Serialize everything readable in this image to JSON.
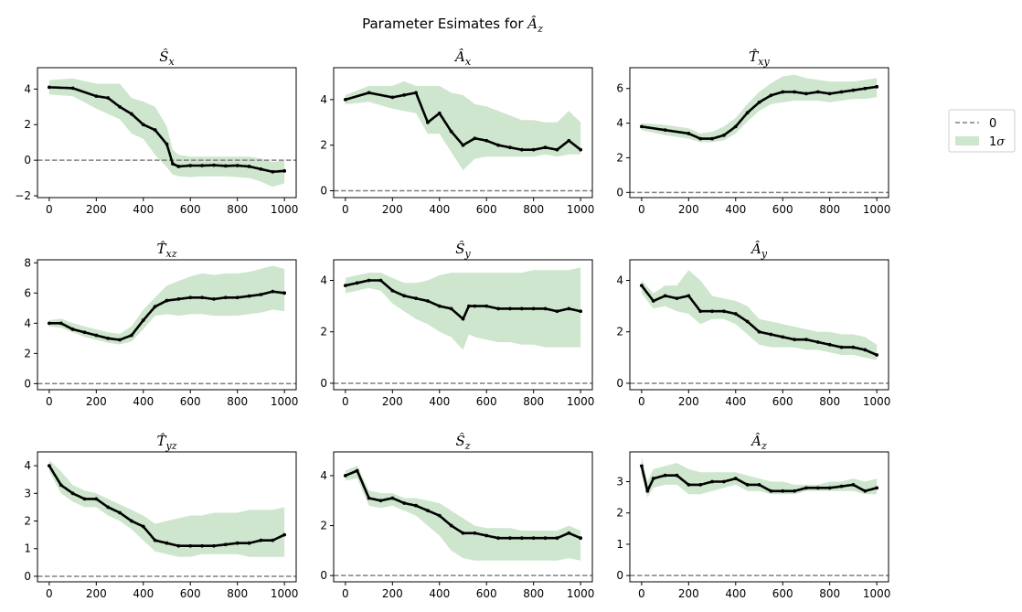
{
  "figure": {
    "suptitle_prefix": "Parameter Esimates for ",
    "suptitle_symbol": "Â",
    "suptitle_sub": "z"
  },
  "legend": {
    "zero_label": "0",
    "band_label_prefix": "1",
    "band_label_symbol": "σ"
  },
  "colors": {
    "estimate": "#000000",
    "band": "#cde6cd",
    "zero_line": "#808080"
  },
  "chart_data": [
    {
      "type": "line",
      "title_symbol": "Ŝ",
      "title_sub": "x",
      "xlim": [
        -50,
        1050
      ],
      "ylim": [
        -2.1,
        5.2
      ],
      "xticks": [
        0,
        200,
        400,
        600,
        800,
        1000
      ],
      "yticks": [
        -2,
        0,
        2,
        4
      ],
      "x": [
        0,
        100,
        200,
        250,
        300,
        350,
        400,
        450,
        500,
        525,
        550,
        600,
        650,
        700,
        750,
        800,
        850,
        900,
        950,
        1000
      ],
      "values": [
        4.1,
        4.05,
        3.6,
        3.5,
        3.0,
        2.6,
        2.0,
        1.7,
        0.9,
        -0.2,
        -0.35,
        -0.3,
        -0.3,
        -0.28,
        -0.32,
        -0.3,
        -0.35,
        -0.5,
        -0.65,
        -0.6
      ],
      "lower": [
        3.7,
        3.6,
        2.9,
        2.6,
        2.3,
        1.5,
        1.2,
        0.3,
        -0.4,
        -0.8,
        -0.9,
        -0.95,
        -0.9,
        -0.9,
        -0.9,
        -0.95,
        -1.0,
        -1.2,
        -1.5,
        -1.3
      ],
      "upper": [
        4.5,
        4.6,
        4.3,
        4.3,
        4.3,
        3.5,
        3.3,
        3.0,
        1.9,
        0.6,
        0.3,
        0.2,
        0.2,
        0.2,
        0.2,
        0.2,
        0.2,
        0.1,
        -0.1,
        0.0
      ]
    },
    {
      "type": "line",
      "title_symbol": "Â",
      "title_sub": "x",
      "xlim": [
        -50,
        1050
      ],
      "ylim": [
        -0.3,
        5.4
      ],
      "xticks": [
        0,
        200,
        400,
        600,
        800,
        1000
      ],
      "yticks": [
        0,
        2,
        4
      ],
      "x": [
        0,
        100,
        200,
        250,
        300,
        350,
        400,
        450,
        500,
        550,
        600,
        650,
        700,
        750,
        800,
        850,
        900,
        950,
        1000
      ],
      "values": [
        4.0,
        4.3,
        4.1,
        4.2,
        4.3,
        3.0,
        3.4,
        2.6,
        2.0,
        2.3,
        2.2,
        2.0,
        1.9,
        1.8,
        1.8,
        1.9,
        1.8,
        2.2,
        1.8
      ],
      "lower": [
        3.8,
        3.9,
        3.6,
        3.5,
        3.4,
        2.5,
        2.5,
        1.7,
        0.9,
        1.4,
        1.5,
        1.5,
        1.5,
        1.5,
        1.5,
        1.6,
        1.5,
        1.6,
        1.6
      ],
      "upper": [
        4.2,
        4.6,
        4.6,
        4.8,
        4.6,
        4.6,
        4.6,
        4.3,
        4.2,
        3.8,
        3.7,
        3.5,
        3.3,
        3.1,
        3.1,
        3.0,
        3.0,
        3.5,
        3.0
      ]
    },
    {
      "type": "line",
      "title_symbol": "T̂",
      "title_sub": "xy",
      "xlim": [
        -50,
        1050
      ],
      "ylim": [
        -0.3,
        7.2
      ],
      "xticks": [
        0,
        200,
        400,
        600,
        800,
        1000
      ],
      "yticks": [
        0,
        2,
        4,
        6
      ],
      "x": [
        0,
        100,
        200,
        250,
        300,
        350,
        400,
        450,
        500,
        550,
        600,
        650,
        700,
        750,
        800,
        850,
        900,
        950,
        1000
      ],
      "values": [
        3.8,
        3.6,
        3.4,
        3.1,
        3.1,
        3.3,
        3.8,
        4.6,
        5.2,
        5.6,
        5.8,
        5.8,
        5.7,
        5.8,
        5.7,
        5.8,
        5.9,
        6.0,
        6.1
      ],
      "lower": [
        3.6,
        3.3,
        3.1,
        2.9,
        2.9,
        3.0,
        3.4,
        4.1,
        4.7,
        5.1,
        5.2,
        5.3,
        5.3,
        5.3,
        5.2,
        5.3,
        5.4,
        5.4,
        5.5
      ],
      "upper": [
        4.0,
        3.9,
        3.7,
        3.4,
        3.5,
        3.8,
        4.3,
        5.1,
        5.8,
        6.3,
        6.7,
        6.8,
        6.6,
        6.5,
        6.4,
        6.4,
        6.4,
        6.5,
        6.6
      ]
    },
    {
      "type": "line",
      "title_symbol": "T̂",
      "title_sub": "xz",
      "xlim": [
        -50,
        1050
      ],
      "ylim": [
        -0.4,
        8.2
      ],
      "xticks": [
        0,
        200,
        400,
        600,
        800,
        1000
      ],
      "yticks": [
        0,
        2,
        4,
        6,
        8
      ],
      "x": [
        0,
        50,
        100,
        150,
        200,
        250,
        300,
        350,
        400,
        450,
        500,
        550,
        600,
        650,
        700,
        750,
        800,
        850,
        900,
        950,
        1000
      ],
      "values": [
        4.0,
        4.0,
        3.6,
        3.4,
        3.2,
        3.0,
        2.9,
        3.2,
        4.2,
        5.1,
        5.5,
        5.6,
        5.7,
        5.7,
        5.6,
        5.7,
        5.7,
        5.8,
        5.9,
        6.1,
        6.0
      ],
      "lower": [
        3.8,
        3.7,
        3.4,
        3.1,
        2.9,
        2.7,
        2.6,
        2.8,
        3.6,
        4.5,
        4.6,
        4.5,
        4.6,
        4.6,
        4.5,
        4.5,
        4.5,
        4.6,
        4.7,
        4.9,
        4.8
      ],
      "upper": [
        4.2,
        4.3,
        4.0,
        3.8,
        3.6,
        3.4,
        3.3,
        3.8,
        4.9,
        5.7,
        6.5,
        6.8,
        7.1,
        7.3,
        7.2,
        7.3,
        7.3,
        7.4,
        7.6,
        7.8,
        7.6
      ]
    },
    {
      "type": "line",
      "title_symbol": "Ŝ",
      "title_sub": "y",
      "xlim": [
        -50,
        1050
      ],
      "ylim": [
        -0.25,
        4.8
      ],
      "xticks": [
        0,
        200,
        400,
        600,
        800,
        1000
      ],
      "yticks": [
        0,
        2,
        4
      ],
      "x": [
        0,
        50,
        100,
        150,
        200,
        250,
        300,
        350,
        400,
        450,
        500,
        525,
        550,
        600,
        650,
        700,
        750,
        800,
        850,
        900,
        950,
        1000
      ],
      "values": [
        3.8,
        3.9,
        4.0,
        4.0,
        3.6,
        3.4,
        3.3,
        3.2,
        3.0,
        2.9,
        2.5,
        3.0,
        3.0,
        3.0,
        2.9,
        2.9,
        2.9,
        2.9,
        2.9,
        2.8,
        2.9,
        2.8
      ],
      "lower": [
        3.5,
        3.6,
        3.7,
        3.6,
        3.1,
        2.8,
        2.5,
        2.3,
        2.0,
        1.8,
        1.3,
        1.9,
        1.8,
        1.7,
        1.6,
        1.6,
        1.5,
        1.5,
        1.4,
        1.4,
        1.4,
        1.4
      ],
      "upper": [
        4.1,
        4.2,
        4.3,
        4.3,
        4.1,
        3.9,
        3.9,
        4.0,
        4.2,
        4.3,
        4.3,
        4.3,
        4.3,
        4.3,
        4.3,
        4.3,
        4.3,
        4.4,
        4.4,
        4.4,
        4.4,
        4.5
      ]
    },
    {
      "type": "line",
      "title_symbol": "Â",
      "title_sub": "y",
      "xlim": [
        -50,
        1050
      ],
      "ylim": [
        -0.25,
        4.8
      ],
      "xticks": [
        0,
        200,
        400,
        600,
        800,
        1000
      ],
      "yticks": [
        0,
        2,
        4
      ],
      "x": [
        0,
        50,
        100,
        150,
        200,
        250,
        300,
        350,
        400,
        450,
        500,
        550,
        600,
        650,
        700,
        750,
        800,
        850,
        900,
        950,
        1000
      ],
      "values": [
        3.8,
        3.2,
        3.4,
        3.3,
        3.4,
        2.8,
        2.8,
        2.8,
        2.7,
        2.4,
        2.0,
        1.9,
        1.8,
        1.7,
        1.7,
        1.6,
        1.5,
        1.4,
        1.4,
        1.3,
        1.1
      ],
      "lower": [
        3.5,
        2.9,
        3.0,
        2.8,
        2.7,
        2.3,
        2.5,
        2.5,
        2.3,
        1.9,
        1.5,
        1.4,
        1.4,
        1.4,
        1.3,
        1.3,
        1.2,
        1.1,
        1.1,
        1.0,
        0.9
      ],
      "upper": [
        4.0,
        3.5,
        3.8,
        3.8,
        4.4,
        4.0,
        3.4,
        3.3,
        3.2,
        3.0,
        2.5,
        2.4,
        2.3,
        2.2,
        2.1,
        2.0,
        2.0,
        1.9,
        1.9,
        1.8,
        1.5
      ]
    },
    {
      "type": "line",
      "title_symbol": "T̂",
      "title_sub": "yz",
      "xlim": [
        -50,
        1050
      ],
      "ylim": [
        -0.2,
        4.5
      ],
      "xticks": [
        0,
        200,
        400,
        600,
        800,
        1000
      ],
      "yticks": [
        0,
        1,
        2,
        3,
        4
      ],
      "x": [
        0,
        50,
        100,
        150,
        200,
        250,
        300,
        350,
        400,
        450,
        500,
        550,
        600,
        650,
        700,
        750,
        800,
        850,
        900,
        950,
        1000
      ],
      "values": [
        4.0,
        3.3,
        3.0,
        2.8,
        2.8,
        2.5,
        2.3,
        2.0,
        1.8,
        1.3,
        1.2,
        1.1,
        1.1,
        1.1,
        1.1,
        1.15,
        1.2,
        1.2,
        1.3,
        1.3,
        1.5
      ],
      "lower": [
        3.8,
        3.0,
        2.7,
        2.5,
        2.5,
        2.2,
        2.0,
        1.7,
        1.3,
        0.9,
        0.8,
        0.7,
        0.7,
        0.8,
        0.8,
        0.8,
        0.8,
        0.7,
        0.7,
        0.7,
        0.7
      ],
      "upper": [
        4.2,
        3.8,
        3.3,
        3.1,
        3.0,
        2.8,
        2.6,
        2.4,
        2.2,
        1.9,
        2.0,
        2.1,
        2.2,
        2.2,
        2.3,
        2.3,
        2.3,
        2.4,
        2.4,
        2.4,
        2.5
      ]
    },
    {
      "type": "line",
      "title_symbol": "Ŝ",
      "title_sub": "z",
      "xlim": [
        -50,
        1050
      ],
      "ylim": [
        -0.25,
        4.95
      ],
      "xticks": [
        0,
        200,
        400,
        600,
        800,
        1000
      ],
      "yticks": [
        0,
        2,
        4
      ],
      "x": [
        0,
        50,
        100,
        150,
        200,
        250,
        300,
        350,
        400,
        450,
        500,
        550,
        600,
        650,
        700,
        750,
        800,
        850,
        900,
        950,
        1000
      ],
      "values": [
        4.0,
        4.2,
        3.1,
        3.0,
        3.1,
        2.9,
        2.8,
        2.6,
        2.4,
        2.0,
        1.7,
        1.7,
        1.6,
        1.5,
        1.5,
        1.5,
        1.5,
        1.5,
        1.5,
        1.7,
        1.5
      ],
      "lower": [
        3.8,
        3.9,
        2.8,
        2.7,
        2.8,
        2.6,
        2.4,
        2.0,
        1.6,
        1.0,
        0.7,
        0.6,
        0.6,
        0.6,
        0.6,
        0.6,
        0.6,
        0.6,
        0.6,
        0.7,
        0.6
      ],
      "upper": [
        4.2,
        4.4,
        3.4,
        3.3,
        3.3,
        3.1,
        3.1,
        3.0,
        2.9,
        2.6,
        2.3,
        2.0,
        1.9,
        1.9,
        1.9,
        1.8,
        1.8,
        1.8,
        1.8,
        2.0,
        1.8
      ]
    },
    {
      "type": "line",
      "title_symbol": "Â",
      "title_sub": "z",
      "xlim": [
        -50,
        1050
      ],
      "ylim": [
        -0.2,
        3.95
      ],
      "xticks": [
        0,
        200,
        400,
        600,
        800,
        1000
      ],
      "yticks": [
        0,
        1,
        2,
        3
      ],
      "x": [
        0,
        25,
        50,
        100,
        150,
        200,
        250,
        300,
        350,
        400,
        450,
        500,
        550,
        600,
        650,
        700,
        750,
        800,
        850,
        900,
        950,
        1000
      ],
      "values": [
        3.5,
        2.7,
        3.1,
        3.2,
        3.2,
        2.9,
        2.9,
        3.0,
        3.0,
        3.1,
        2.9,
        2.9,
        2.7,
        2.7,
        2.7,
        2.8,
        2.8,
        2.8,
        2.85,
        2.9,
        2.7,
        2.8
      ],
      "lower": [
        3.2,
        2.5,
        2.8,
        2.9,
        2.9,
        2.6,
        2.6,
        2.7,
        2.8,
        2.9,
        2.7,
        2.7,
        2.6,
        2.6,
        2.6,
        2.7,
        2.7,
        2.7,
        2.7,
        2.7,
        2.6,
        2.6
      ],
      "upper": [
        3.8,
        3.0,
        3.4,
        3.5,
        3.6,
        3.4,
        3.3,
        3.3,
        3.3,
        3.3,
        3.2,
        3.1,
        3.0,
        3.0,
        2.9,
        2.9,
        2.9,
        3.0,
        3.0,
        3.1,
        3.0,
        3.1
      ]
    }
  ]
}
